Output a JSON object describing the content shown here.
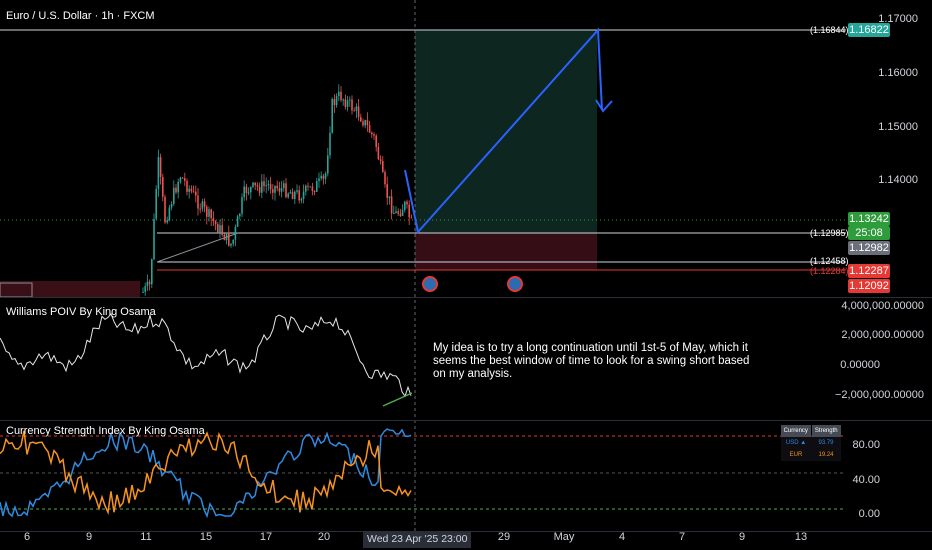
{
  "main": {
    "symbol_title": "Euro / U.S. Dollar · 1h · FXCM",
    "price_ticks": [
      "1.17000",
      "1.16000",
      "1.15000",
      "1.14000"
    ],
    "level_labels": [
      "(1.16844)",
      "(1.12985)",
      "(1.12458)",
      "(1.12284)"
    ],
    "price_tags": {
      "target": "1.16822",
      "last": "1.13242",
      "countdown": "25:08",
      "entry": "1.12982",
      "stop": "1.12287",
      "low": "1.12092"
    }
  },
  "williams": {
    "title": "Williams POIV By King Osama",
    "ticks": [
      "4,000,000.00000",
      "2,000,000.00000",
      "0.00000",
      "−2,000,000.00000"
    ]
  },
  "note": {
    "text": "My idea is to try a long continuation until 1st-5 of May, which it seems the best window of time to look for a swing short based on my analysis."
  },
  "csi": {
    "title": "Currency Strength Index By King Osama",
    "ticks": [
      "80.00",
      "40.00",
      "0.00"
    ],
    "table": {
      "headers": [
        "Currency",
        "Strength"
      ],
      "rows": [
        {
          "currency": "USD ▲",
          "strength": "93.79"
        },
        {
          "currency": "EUR",
          "strength": "19.24"
        }
      ]
    }
  },
  "time_axis": {
    "labels": [
      "6",
      "9",
      "11",
      "15",
      "17",
      "20",
      "29",
      "May",
      "4",
      "7",
      "9",
      "13"
    ],
    "crosshair_label": "Wed 23 Apr '25   23:00"
  },
  "colors": {
    "background": "#000000",
    "target_tag": "#26a69a",
    "last_tag": "#2e9c3b",
    "entry_tag": "#6b6f7a",
    "stop_tag": "#e53935",
    "projection": "#2962ff",
    "usd_line": "#2f8ae0",
    "eur_line": "#f7931e"
  }
}
